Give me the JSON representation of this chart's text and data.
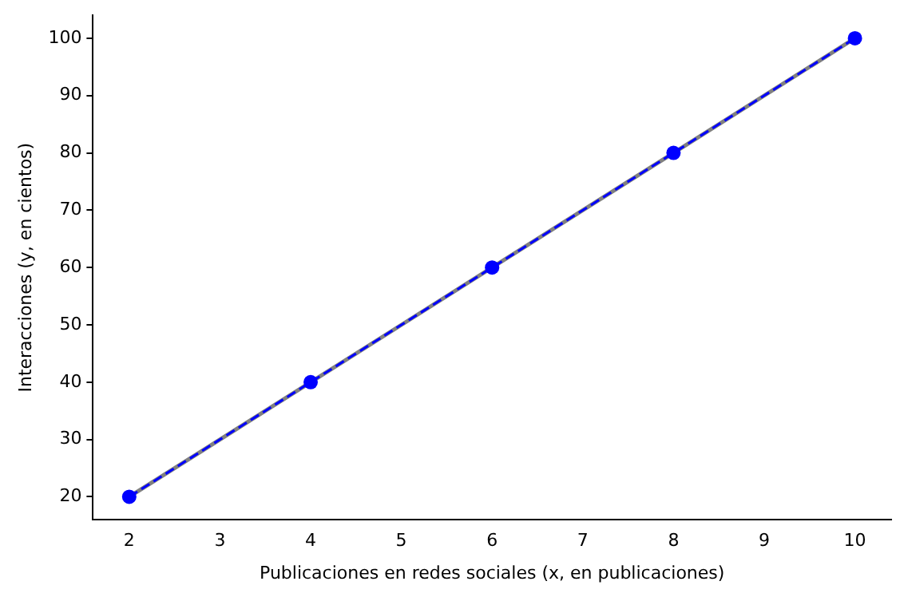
{
  "chart_data": {
    "type": "line",
    "xlabel": "Publicaciones en redes sociales (x, en publicaciones)",
    "ylabel": "Interacciones (y, en cientos)",
    "x": [
      2,
      4,
      6,
      8,
      10
    ],
    "xlim": [
      1.6,
      10.4
    ],
    "xticks": [
      2,
      3,
      4,
      5,
      6,
      7,
      8,
      9,
      10
    ],
    "ylim": [
      16,
      104
    ],
    "yticks": [
      20,
      30,
      40,
      50,
      60,
      70,
      80,
      90,
      100
    ],
    "grid": false,
    "legend": false,
    "series": [
      {
        "type": "line",
        "color": "#808080",
        "line_style": "solid",
        "values": [
          20,
          40,
          60,
          80,
          100
        ]
      },
      {
        "type": "line",
        "color": "#0000ff",
        "line_style": "dashed",
        "values": [
          20,
          40,
          60,
          80,
          100
        ]
      },
      {
        "type": "scatter",
        "color": "#0000ff",
        "marker": "circle",
        "values": [
          20,
          40,
          60,
          80,
          100
        ]
      }
    ]
  }
}
